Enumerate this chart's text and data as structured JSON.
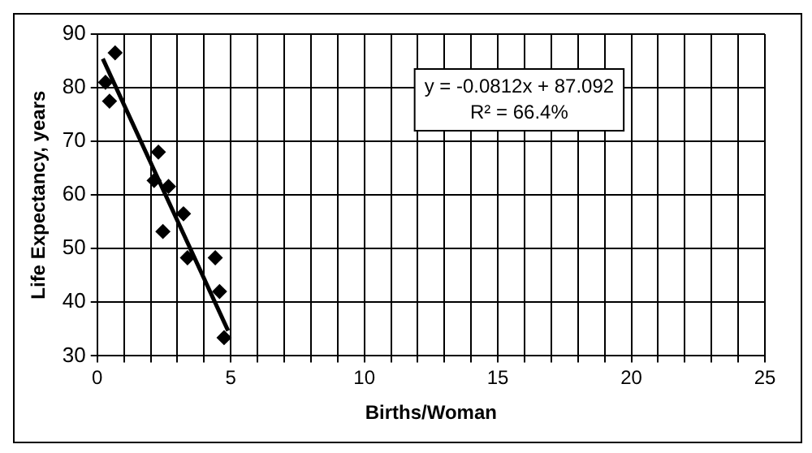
{
  "chart_data": {
    "type": "scatter",
    "xlabel": "Births/Woman",
    "ylabel": "Life Expectancy, years",
    "xlim": [
      0,
      25
    ],
    "ylim": [
      30,
      90
    ],
    "xticks": [
      0,
      {
        "value": 1,
        "label": null
      },
      {
        "value": 2,
        "label": null
      },
      {
        "value": 3,
        "label": null
      },
      {
        "value": 4,
        "label": null
      },
      5,
      {
        "value": 6,
        "label": null
      },
      {
        "value": 7,
        "label": null
      },
      {
        "value": 8,
        "label": null
      },
      {
        "value": 9,
        "label": null
      },
      10,
      {
        "value": 11,
        "label": null
      },
      {
        "value": 12,
        "label": null
      },
      {
        "value": 13,
        "label": null
      },
      {
        "value": 14,
        "label": null
      },
      15,
      {
        "value": 16,
        "label": null
      },
      {
        "value": 17,
        "label": null
      },
      {
        "value": 18,
        "label": null
      },
      {
        "value": 19,
        "label": null
      },
      20,
      {
        "value": 21,
        "label": null
      },
      {
        "value": 22,
        "label": null
      },
      {
        "value": 23,
        "label": null
      },
      {
        "value": 24,
        "label": null
      },
      25
    ],
    "yticks": [
      30,
      40,
      50,
      60,
      70,
      80,
      90
    ],
    "grid": true,
    "legend": false,
    "series": [
      {
        "type": "scatter",
        "marker": "diamond",
        "color": "#000000",
        "x": [
          0.67,
          0.31,
          0.46,
          2.29,
          2.13,
          2.67,
          2.46,
          3.23,
          3.38,
          4.42,
          4.58,
          4.75
        ],
        "values": [
          86.5,
          81,
          77.5,
          68,
          62.7,
          61.6,
          53.2,
          56.5,
          48.3,
          48.3,
          42,
          33.4
        ]
      },
      {
        "type": "line",
        "marker": "none",
        "color": "#000000",
        "x": [
          0.21,
          4.9
        ],
        "values": [
          85.4,
          34.7
        ]
      }
    ],
    "annotations": [
      "y = -0.0812x + 87.092",
      "R² = 66.4%"
    ]
  }
}
